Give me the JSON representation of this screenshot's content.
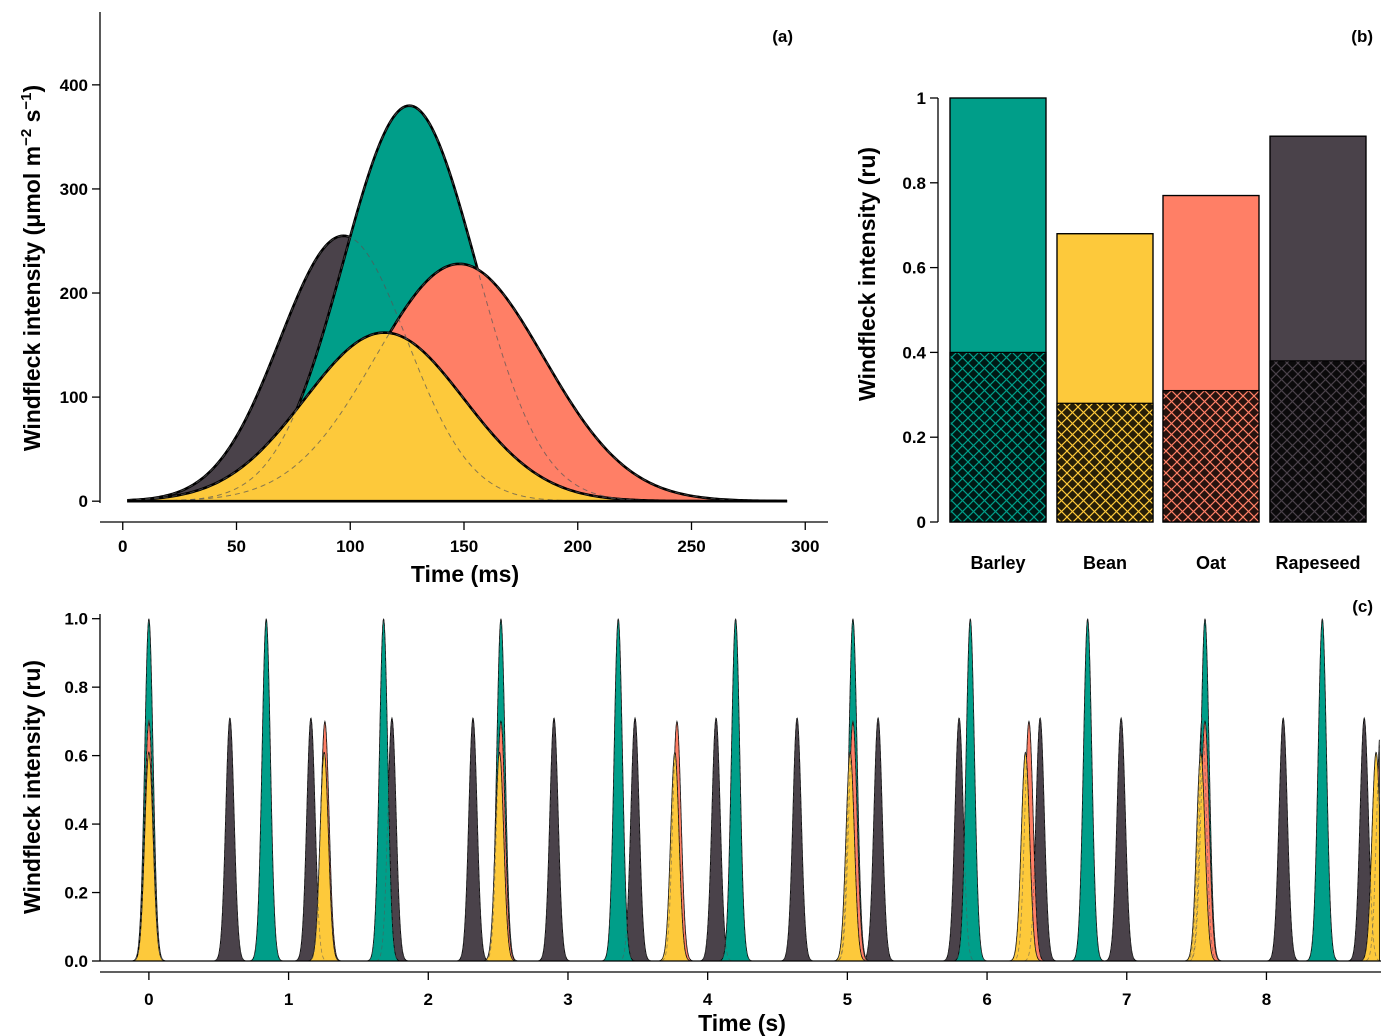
{
  "colors": {
    "barley": "#009E89",
    "bean": "#FDC93B",
    "oat": "#FF7F66",
    "rapeseed": "#4A424A"
  },
  "chart_data": [
    {
      "panel": "(a)",
      "type": "area",
      "xlabel": "Time (ms)",
      "ylabel_main": "Windfleck intensity (μmol m",
      "ylabel_sup1": "−2",
      "ylabel_mid": " s",
      "ylabel_sup2": "−1",
      "ylabel_end": ")",
      "xlim": [
        -10,
        310
      ],
      "ylim": [
        -20,
        470
      ],
      "xticks": [
        0,
        50,
        100,
        150,
        200,
        250,
        300
      ],
      "yticks": [
        0,
        100,
        200,
        300,
        400
      ],
      "series": [
        {
          "color_key": "rapeseed",
          "peak": 255,
          "mean": 97,
          "sd": 28
        },
        {
          "color_key": "barley",
          "peak": 380,
          "mean": 126,
          "sd": 29
        },
        {
          "color_key": "oat",
          "peak": 228,
          "mean": 148,
          "sd": 37
        },
        {
          "color_key": "bean",
          "peak": 162,
          "mean": 115,
          "sd": 35
        }
      ]
    },
    {
      "panel": "(b)",
      "type": "bar",
      "ylabel": "Windfleck intensity (ru)",
      "ylim": [
        0,
        1
      ],
      "yticks": [
        "0",
        "0.2",
        "0.4",
        "0.6",
        "0.8",
        "1"
      ],
      "categories": [
        "Barley",
        "Bean",
        "Oat",
        "Rapeseed"
      ],
      "values": [
        1.0,
        0.68,
        0.77,
        0.91
      ],
      "hatched_values": [
        0.4,
        0.28,
        0.31,
        0.38
      ]
    },
    {
      "panel": "(c)",
      "type": "area",
      "xlabel": "Time (s)",
      "ylabel": "Windfleck intensity (ru)",
      "xlim": [
        -0.35,
        8.82
      ],
      "ylim": [
        0,
        1.04
      ],
      "xticks": [
        0,
        1,
        2,
        3,
        4,
        5,
        6,
        7,
        8
      ],
      "yticks": [
        "0.0",
        "0.2",
        "0.4",
        "0.6",
        "0.8",
        "1.0"
      ],
      "series": [
        {
          "color_key": "rapeseed",
          "peak": 0.71,
          "period": 0.58,
          "sd": 0.03
        },
        {
          "color_key": "barley",
          "peak": 1.0,
          "period": 0.84,
          "sd": 0.03
        },
        {
          "color_key": "oat",
          "peak": 0.7,
          "period": 1.26,
          "sd": 0.03
        },
        {
          "color_key": "bean",
          "peak": 0.61,
          "period": 1.255,
          "sd": 0.03
        }
      ]
    }
  ]
}
